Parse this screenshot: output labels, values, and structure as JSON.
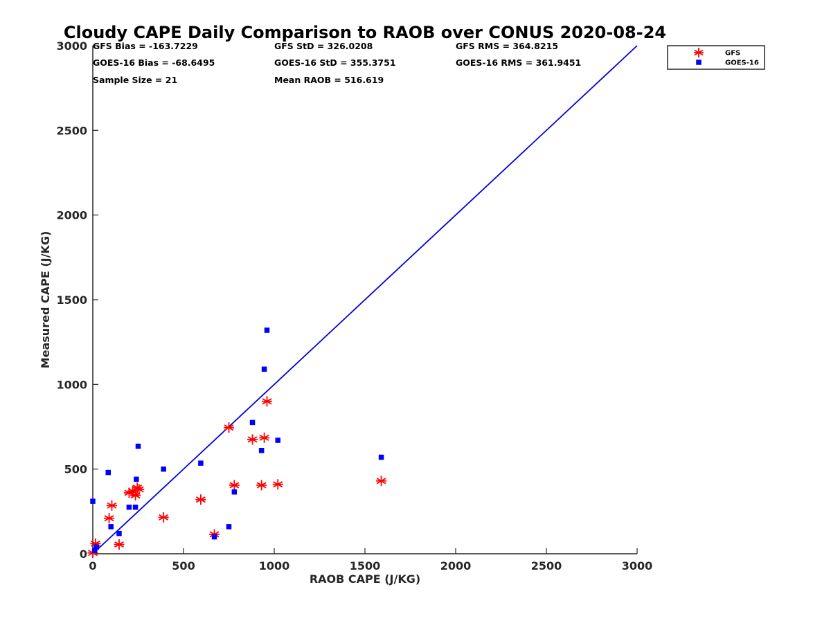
{
  "chart_data": {
    "type": "scatter",
    "title": "Cloudy CAPE Daily Comparison to RAOB over CONUS 2020-08-24",
    "xlabel": "RAOB CAPE (J/KG)",
    "ylabel": "Measured CAPE (J/KG)",
    "xlim": [
      0,
      3000
    ],
    "ylim": [
      0,
      3000
    ],
    "xticks": [
      0,
      500,
      1000,
      1500,
      2000,
      2500,
      3000
    ],
    "yticks": [
      0,
      500,
      1000,
      1500,
      2000,
      2500,
      3000
    ],
    "xtick_labels": [
      "0",
      "500",
      "1000",
      "1500",
      "2000",
      "2500",
      "3000"
    ],
    "ytick_labels": [
      "0",
      "500",
      "1000",
      "1500",
      "2000",
      "2500",
      "3000"
    ],
    "grid": false,
    "legend_position": "top-right",
    "one_to_one_line": {
      "x": [
        0,
        3000
      ],
      "y": [
        0,
        3000
      ],
      "color": "#0000dd"
    },
    "stats": [
      "GFS Bias = -163.7229",
      "GFS StD = 326.0208",
      "GFS RMS = 364.8215",
      "GOES-16 Bias = -68.6495",
      "GOES-16 StD = 355.3751",
      "GOES-16 RMS = 361.9451",
      "Sample Size = 21",
      "Mean RAOB = 516.619"
    ],
    "series": [
      {
        "name": "GFS",
        "marker": "asterisk",
        "color": "#ff0000",
        "points": [
          [
            0,
            5
          ],
          [
            15,
            60
          ],
          [
            90,
            210
          ],
          [
            105,
            285
          ],
          [
            145,
            55
          ],
          [
            200,
            360
          ],
          [
            220,
            370
          ],
          [
            235,
            345
          ],
          [
            245,
            390
          ],
          [
            255,
            380
          ],
          [
            390,
            215
          ],
          [
            595,
            320
          ],
          [
            670,
            115
          ],
          [
            750,
            745
          ],
          [
            780,
            405
          ],
          [
            880,
            675
          ],
          [
            930,
            405
          ],
          [
            945,
            685
          ],
          [
            960,
            900
          ],
          [
            1020,
            410
          ],
          [
            1590,
            430
          ]
        ]
      },
      {
        "name": "GOES-16",
        "marker": "square",
        "color": "#0000ff",
        "points": [
          [
            0,
            310
          ],
          [
            10,
            20
          ],
          [
            20,
            40
          ],
          [
            85,
            480
          ],
          [
            100,
            160
          ],
          [
            145,
            120
          ],
          [
            200,
            275
          ],
          [
            235,
            275
          ],
          [
            240,
            440
          ],
          [
            250,
            635
          ],
          [
            390,
            500
          ],
          [
            595,
            535
          ],
          [
            670,
            100
          ],
          [
            750,
            160
          ],
          [
            780,
            365
          ],
          [
            880,
            775
          ],
          [
            930,
            610
          ],
          [
            945,
            1090
          ],
          [
            960,
            1320
          ],
          [
            1020,
            670
          ],
          [
            1590,
            570
          ]
        ]
      }
    ]
  }
}
